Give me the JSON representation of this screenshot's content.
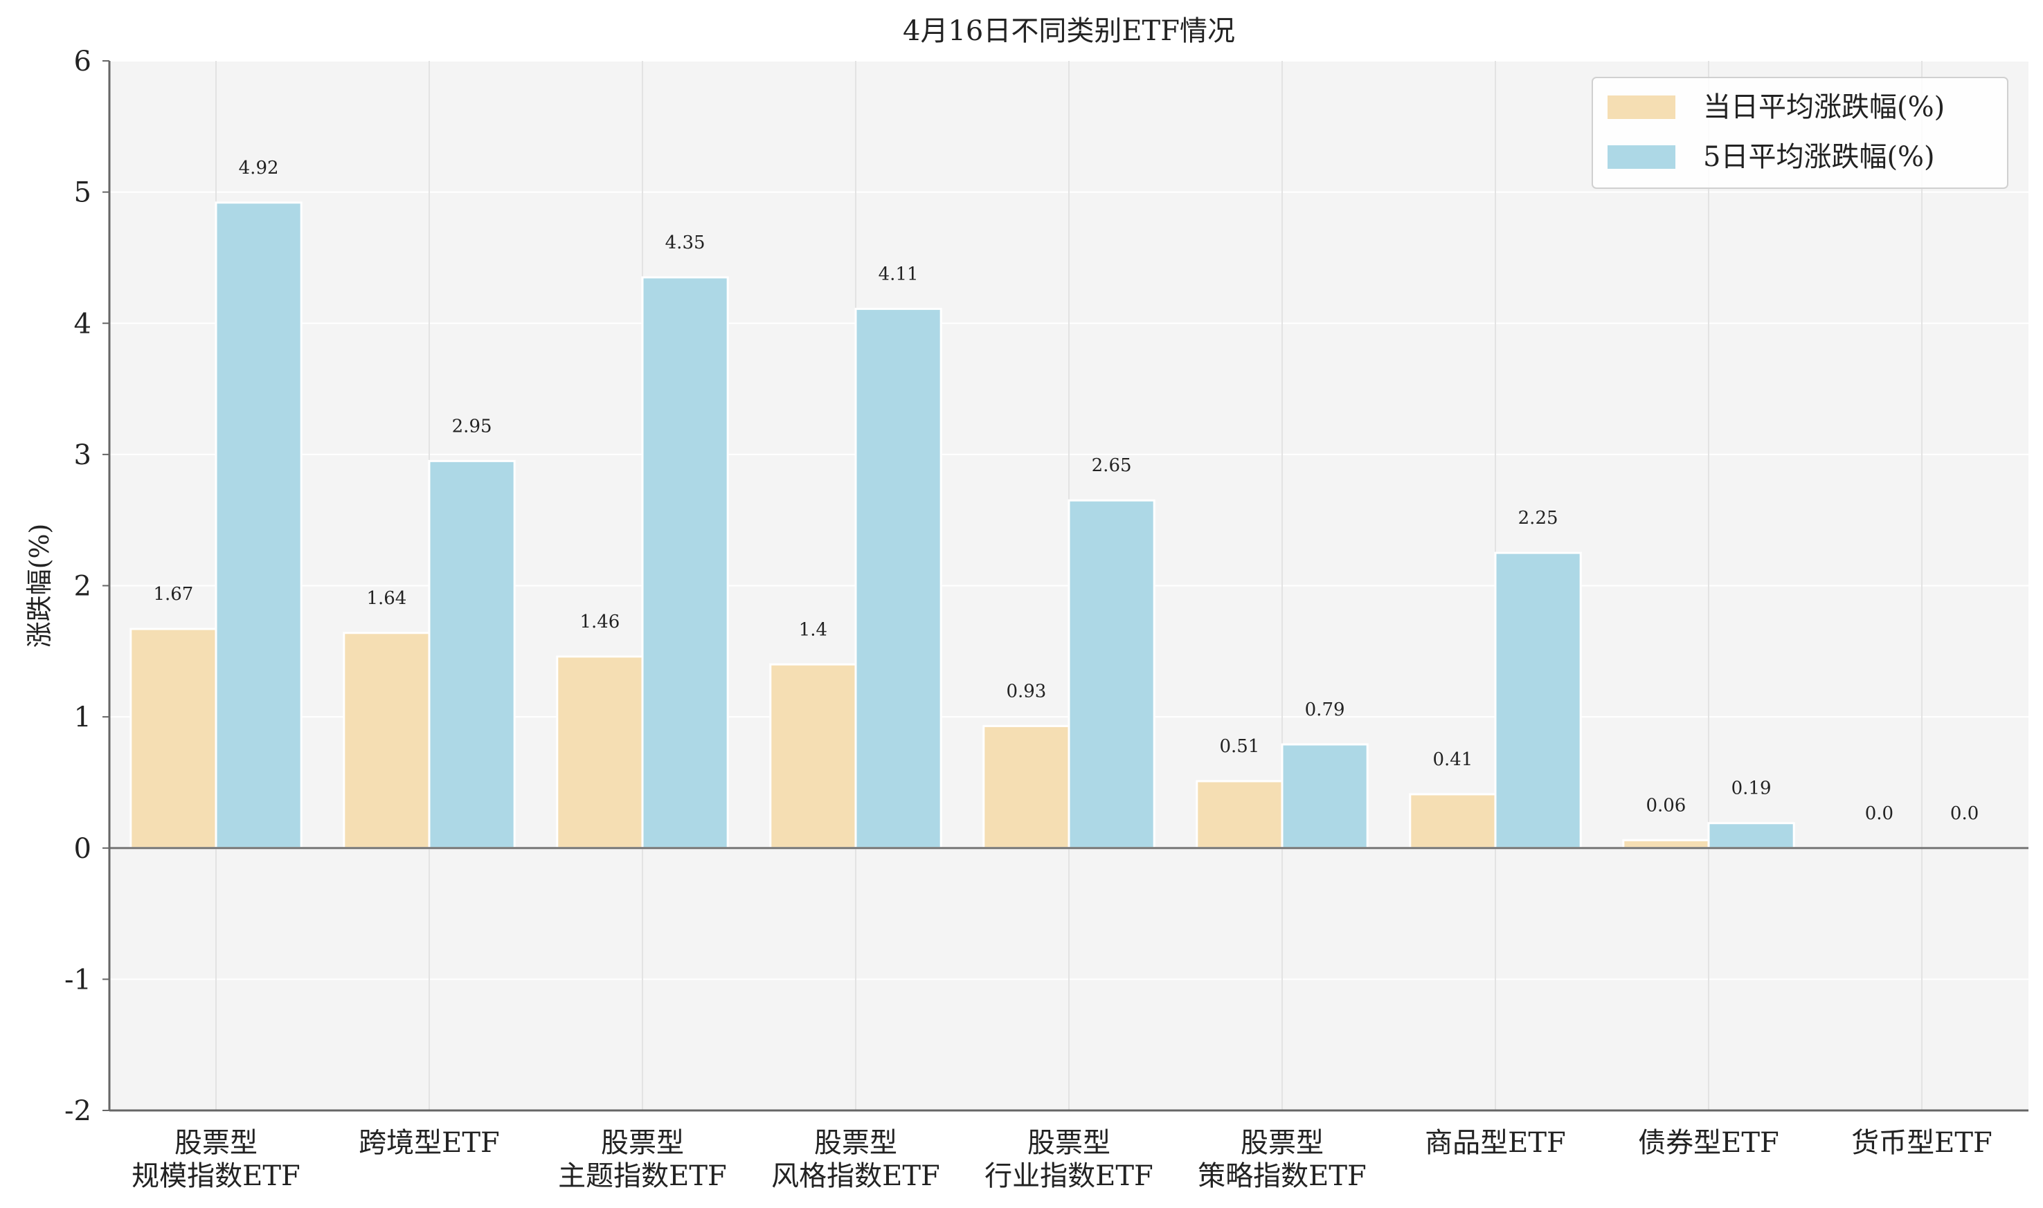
{
  "chart_data": {
    "type": "bar",
    "title": "4月16日不同类别ETF情况",
    "ylabel": "涨跌幅(%)",
    "xlabel": "",
    "ylim": [
      -2,
      6
    ],
    "yticks": [
      -2,
      -1,
      0,
      1,
      2,
      3,
      4,
      5,
      6
    ],
    "grid": true,
    "legend_position": "top-right",
    "categories": [
      [
        "股票型",
        "规模指数ETF"
      ],
      [
        "跨境型ETF"
      ],
      [
        "股票型",
        "主题指数ETF"
      ],
      [
        "股票型",
        "风格指数ETF"
      ],
      [
        "股票型",
        "行业指数ETF"
      ],
      [
        "股票型",
        "策略指数ETF"
      ],
      [
        "商品型ETF"
      ],
      [
        "债券型ETF"
      ],
      [
        "货币型ETF"
      ]
    ],
    "series": [
      {
        "name": "当日平均涨跌幅(%)",
        "color": "#f5deb3",
        "values": [
          1.67,
          1.64,
          1.46,
          1.4,
          0.93,
          0.51,
          0.41,
          0.06,
          0.0
        ],
        "labels": [
          "1.67",
          "1.64",
          "1.46",
          "1.4",
          "0.93",
          "0.51",
          "0.41",
          "0.06",
          "0.0"
        ]
      },
      {
        "name": "5日平均涨跌幅(%)",
        "color": "#add8e6",
        "values": [
          4.92,
          2.95,
          4.35,
          4.11,
          2.65,
          0.79,
          2.25,
          0.19,
          0.0
        ],
        "labels": [
          "4.92",
          "2.95",
          "4.35",
          "4.11",
          "2.65",
          "0.79",
          "2.25",
          "0.19",
          "0.0"
        ]
      }
    ],
    "colors": {
      "plot_background": "#f4f4f4",
      "grid": "#e3e3e3",
      "axis": "#666666",
      "zero_line": "#777777"
    }
  }
}
